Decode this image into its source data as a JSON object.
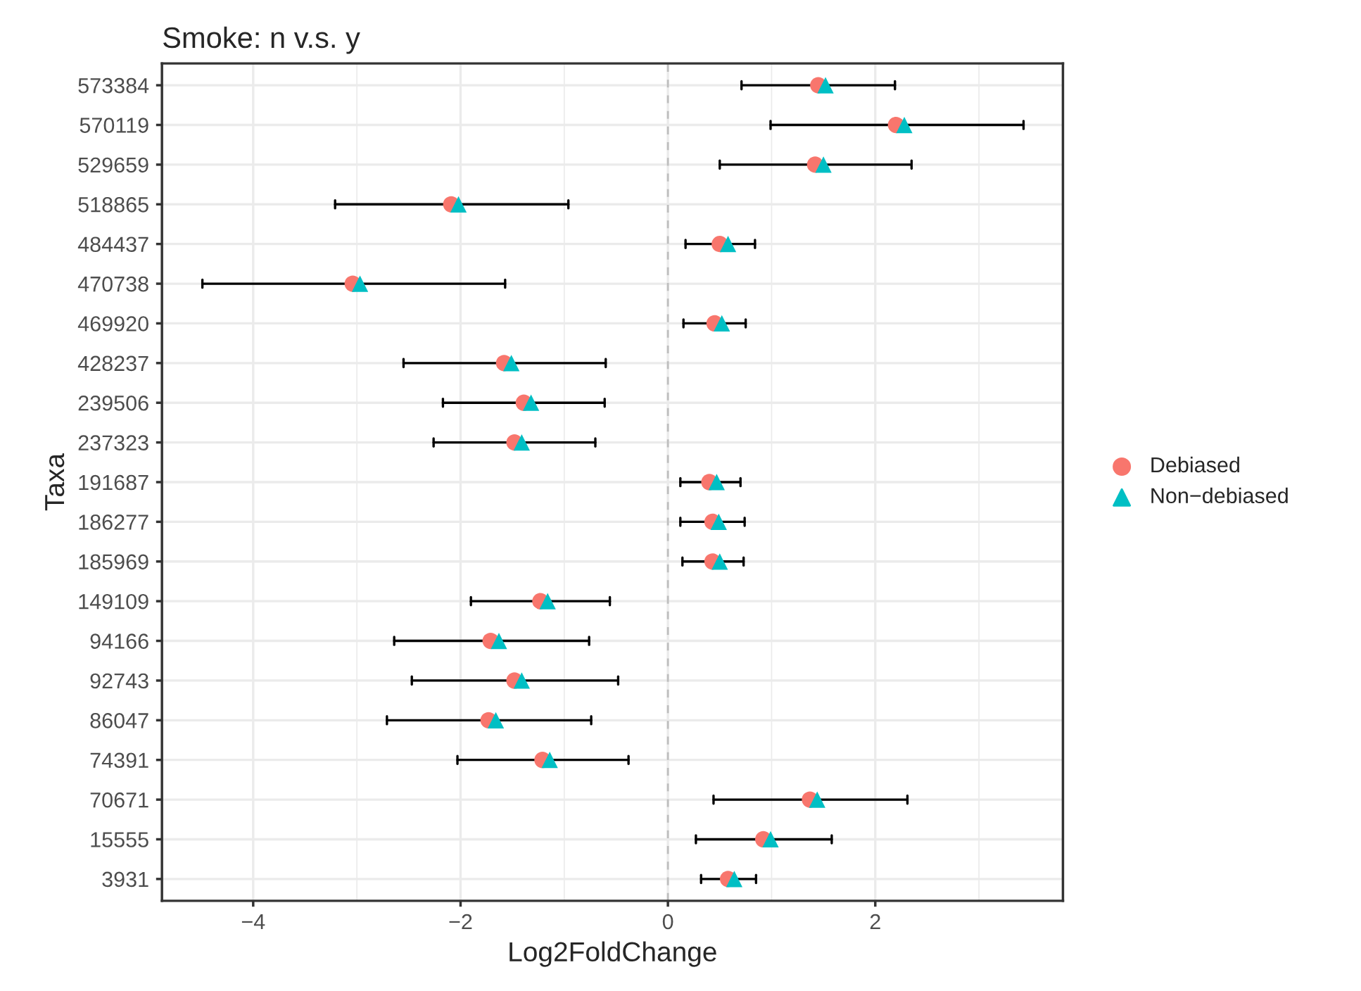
{
  "chart_data": {
    "type": "scatter",
    "orientation": "horizontal",
    "title": "Smoke: n v.s. y",
    "xlabel": "Log2FoldChange",
    "ylabel": "Taxa",
    "categories": [
      "573384",
      "570119",
      "529659",
      "518865",
      "484437",
      "470738",
      "469920",
      "428237",
      "239506",
      "237323",
      "191687",
      "186277",
      "185969",
      "149109",
      "94166",
      "92743",
      "86047",
      "74391",
      "70671",
      "15555",
      "3931"
    ],
    "series": [
      {
        "name": "Debiased",
        "color": "#f8766d",
        "marker": "circle",
        "values": [
          1.45,
          2.2,
          1.42,
          -2.09,
          0.5,
          -3.04,
          0.45,
          -1.58,
          -1.39,
          -1.48,
          0.4,
          0.43,
          0.43,
          -1.23,
          -1.71,
          -1.48,
          -1.73,
          -1.21,
          1.37,
          0.92,
          0.58
        ],
        "errors": [
          [
            0.71,
            2.19
          ],
          [
            0.99,
            3.43
          ],
          [
            0.5,
            2.35
          ],
          [
            -3.21,
            -0.96
          ],
          [
            0.17,
            0.84
          ],
          [
            -4.49,
            -1.57
          ],
          [
            0.15,
            0.75
          ],
          [
            -2.55,
            -0.6
          ],
          [
            -2.17,
            -0.61
          ],
          [
            -2.26,
            -0.7
          ],
          [
            0.12,
            0.7
          ],
          [
            0.12,
            0.74
          ],
          [
            0.14,
            0.73
          ],
          [
            -1.9,
            -0.56
          ],
          [
            -2.64,
            -0.76
          ],
          [
            -2.47,
            -0.48
          ],
          [
            -2.71,
            -0.74
          ],
          [
            -2.03,
            -0.38
          ],
          [
            0.44,
            2.31
          ],
          [
            0.27,
            1.58
          ],
          [
            0.32,
            0.85
          ]
        ]
      },
      {
        "name": "Non−debiased",
        "color": "#00bfc4",
        "marker": "triangle",
        "values": [
          1.52,
          2.28,
          1.5,
          -2.02,
          0.58,
          -2.97,
          0.52,
          -1.51,
          -1.32,
          -1.41,
          0.47,
          0.49,
          0.5,
          -1.16,
          -1.63,
          -1.41,
          -1.66,
          -1.14,
          1.44,
          0.99,
          0.64
        ]
      }
    ],
    "xlim": [
      -4.88,
      3.81
    ],
    "xticks": [
      -4,
      -2,
      0,
      2
    ],
    "ref_lines": [
      {
        "axis": "x",
        "value": 0,
        "color": "#bebebe",
        "line_style": "dashed"
      }
    ],
    "grid": true,
    "legend": "right"
  }
}
